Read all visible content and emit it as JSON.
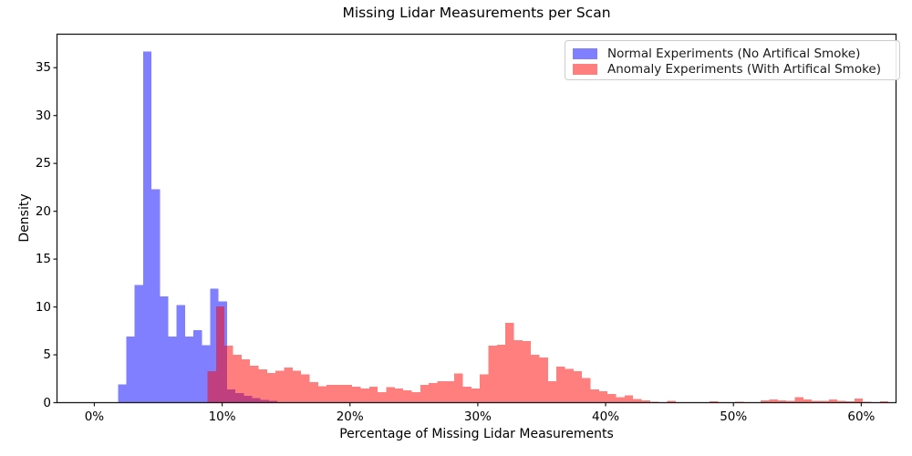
{
  "figure": {
    "title": "Missing Lidar Measurements per Scan",
    "xlabel": "Percentage of Missing Lidar Measurements",
    "ylabel": "Density"
  },
  "legend": {
    "items": [
      {
        "label": "Normal Experiments (No Artifical Smoke)",
        "color": "#0000ff"
      },
      {
        "label": "Anomaly Experiments (With Artifical Smoke)",
        "color": "#ff0000"
      }
    ]
  },
  "chart_data": {
    "type": "bar",
    "subtype": "overlaid-density-histogram",
    "title": "Missing Lidar Measurements per Scan",
    "xlabel": "Percentage of Missing Lidar Measurements",
    "ylabel": "Density",
    "xlim": [
      -2.92,
      62.72
    ],
    "ylim": [
      0,
      38.5
    ],
    "grid": false,
    "legend_position": "upper right",
    "bar_opacity": 0.5,
    "x_ticks": {
      "values": [
        0,
        10,
        20,
        30,
        40,
        50,
        60
      ],
      "labels": [
        "0%",
        "10%",
        "20%",
        "30%",
        "40%",
        "50%",
        "60%"
      ]
    },
    "y_ticks": {
      "values": [
        0,
        5,
        10,
        15,
        20,
        25,
        30,
        35
      ],
      "labels": [
        "0",
        "5",
        "10",
        "15",
        "20",
        "25",
        "30",
        "35"
      ]
    },
    "series": [
      {
        "name": "Normal Experiments (No Artifical Smoke)",
        "color": "#0000ff",
        "bin_start_pct": 1.85,
        "bin_width_pct": 0.656,
        "densities": [
          1.9,
          6.9,
          12.3,
          36.7,
          22.3,
          11.1,
          6.9,
          10.2,
          6.9,
          7.6,
          6.0,
          11.9,
          10.6,
          1.4,
          1.0,
          0.7,
          0.5,
          0.3,
          0.2
        ]
      },
      {
        "name": "Anomaly Experiments (With Artifical Smoke)",
        "color": "#ff0000",
        "bin_start_pct": 8.85,
        "bin_width_pct": 0.666,
        "densities": [
          3.3,
          10.05,
          5.95,
          5.0,
          4.55,
          3.85,
          3.5,
          3.1,
          3.35,
          3.65,
          3.35,
          2.95,
          2.15,
          1.7,
          1.85,
          1.85,
          1.87,
          1.68,
          1.46,
          1.68,
          1.08,
          1.6,
          1.46,
          1.27,
          1.08,
          1.87,
          2.06,
          2.25,
          2.25,
          3.05,
          1.68,
          1.46,
          2.95,
          5.97,
          6.06,
          8.35,
          6.51,
          6.44,
          5.02,
          4.7,
          2.25,
          3.75,
          3.52,
          3.27,
          2.57,
          1.37,
          1.21,
          0.9,
          0.55,
          0.75,
          0.4,
          0.25,
          0.08,
          0.05,
          0.19,
          0.05,
          0.02,
          0.02,
          0.03,
          0.16,
          0.05,
          0.03,
          0.1,
          0.03,
          0.05,
          0.25,
          0.32,
          0.25,
          0.19,
          0.55,
          0.35,
          0.2,
          0.19,
          0.32,
          0.19,
          0.15,
          0.41,
          0.1,
          0.05,
          0.15
        ]
      }
    ]
  }
}
